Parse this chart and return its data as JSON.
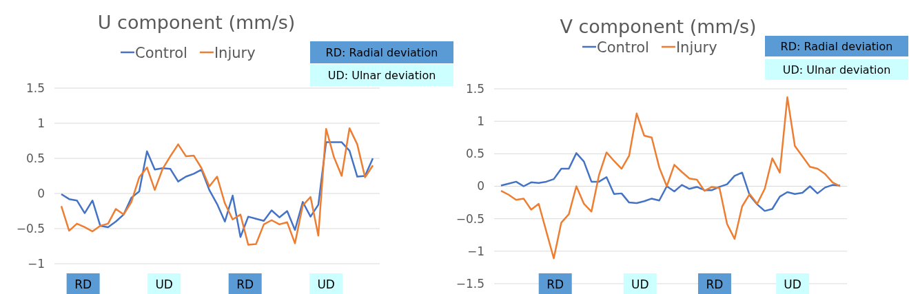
{
  "chart_data": [
    {
      "type": "line",
      "title": "U component (mm/s)",
      "categories": [
        null,
        null,
        null,
        null,
        null,
        null,
        null,
        null,
        null,
        null,
        null,
        null,
        null,
        null,
        null,
        null,
        null,
        null,
        null,
        null,
        null,
        null,
        null,
        null,
        null,
        null,
        null,
        null,
        null,
        null,
        null,
        null,
        null,
        null,
        null,
        null,
        null,
        null,
        null,
        null,
        null
      ],
      "series": [
        {
          "name": "Control",
          "color": "#4472c4",
          "values": [
            -0.01,
            -0.08,
            -0.1,
            -0.28,
            -0.1,
            -0.46,
            -0.48,
            -0.4,
            -0.3,
            -0.06,
            0.03,
            0.6,
            0.34,
            0.36,
            0.35,
            0.17,
            0.24,
            0.28,
            0.34,
            0.05,
            -0.15,
            -0.4,
            -0.03,
            -0.62,
            -0.33,
            -0.36,
            -0.39,
            -0.24,
            -0.34,
            -0.25,
            -0.52,
            -0.12,
            -0.33,
            -0.16,
            0.73,
            0.73,
            0.73,
            0.61,
            0.24,
            0.25,
            0.5
          ]
        },
        {
          "name": "Injury",
          "color": "#ed7d31",
          "values": [
            -0.18,
            -0.53,
            -0.43,
            -0.48,
            -0.54,
            -0.46,
            -0.43,
            -0.22,
            -0.3,
            -0.12,
            0.23,
            0.37,
            0.05,
            0.35,
            0.53,
            0.7,
            0.53,
            0.54,
            0.36,
            0.1,
            0.24,
            -0.14,
            -0.37,
            -0.3,
            -0.73,
            -0.72,
            -0.44,
            -0.38,
            -0.44,
            -0.41,
            -0.71,
            -0.17,
            -0.05,
            -0.6,
            0.92,
            0.52,
            0.25,
            0.93,
            0.7,
            0.23,
            0.4
          ]
        }
      ],
      "ylim": [
        -1,
        1.5
      ],
      "yticks": [
        -1,
        -0.5,
        0,
        0.5,
        1,
        1.5
      ],
      "grid": "y",
      "legend": "top",
      "line_style": "solid",
      "marker": "none",
      "annotations": [
        "RD: Radial deviation",
        "UD: Ulnar deviation",
        "RD",
        "UD",
        "RD",
        "UD"
      ]
    },
    {
      "type": "line",
      "title": "V component (mm/s)",
      "categories": [
        null,
        null,
        null,
        null,
        null,
        null,
        null,
        null,
        null,
        null,
        null,
        null,
        null,
        null,
        null,
        null,
        null,
        null,
        null,
        null,
        null,
        null,
        null,
        null,
        null,
        null,
        null,
        null,
        null,
        null,
        null,
        null,
        null,
        null,
        null,
        null,
        null,
        null,
        null,
        null,
        null,
        null,
        null,
        null,
        null,
        null
      ],
      "series": [
        {
          "name": "Control",
          "color": "#4472c4",
          "values": [
            0.01,
            0.04,
            0.07,
            0,
            0.06,
            0.05,
            0.07,
            0.11,
            0.27,
            0.27,
            0.51,
            0.38,
            0.07,
            0.07,
            0.14,
            -0.12,
            -0.11,
            -0.25,
            -0.26,
            -0.23,
            -0.19,
            -0.22,
            0,
            -0.08,
            0.02,
            -0.04,
            -0.01,
            -0.06,
            -0.06,
            -0.01,
            0.03,
            0.16,
            0.21,
            -0.14,
            -0.28,
            -0.38,
            -0.35,
            -0.16,
            -0.09,
            -0.12,
            -0.1,
            0,
            -0.11,
            -0.02,
            0.02,
            0.01
          ]
        },
        {
          "name": "Injury",
          "color": "#ed7d31",
          "values": [
            -0.07,
            -0.13,
            -0.21,
            -0.19,
            -0.36,
            -0.27,
            -0.69,
            -1.11,
            -0.56,
            -0.43,
            0,
            -0.27,
            -0.39,
            0.17,
            0.52,
            0.39,
            0.27,
            0.47,
            1.12,
            0.78,
            0.75,
            0.29,
            0,
            0.33,
            0.22,
            0.12,
            0.1,
            -0.07,
            -0.01,
            -0.03,
            -0.58,
            -0.81,
            -0.31,
            -0.12,
            -0.27,
            -0.04,
            0.43,
            0.21,
            1.37,
            0.62,
            0.46,
            0.3,
            0.27,
            0.19,
            0.06,
            0
          ]
        }
      ],
      "ylim": [
        -1.5,
        1.5
      ],
      "yticks": [
        -1.5,
        -1,
        -0.5,
        0,
        0.5,
        1,
        1.5
      ],
      "grid": "y",
      "legend": "top",
      "line_style": "solid",
      "marker": "none",
      "annotations": [
        "RD: Radial deviation",
        "UD: Ulnar deviation",
        "RD",
        "UD",
        "RD",
        "UD"
      ]
    }
  ]
}
